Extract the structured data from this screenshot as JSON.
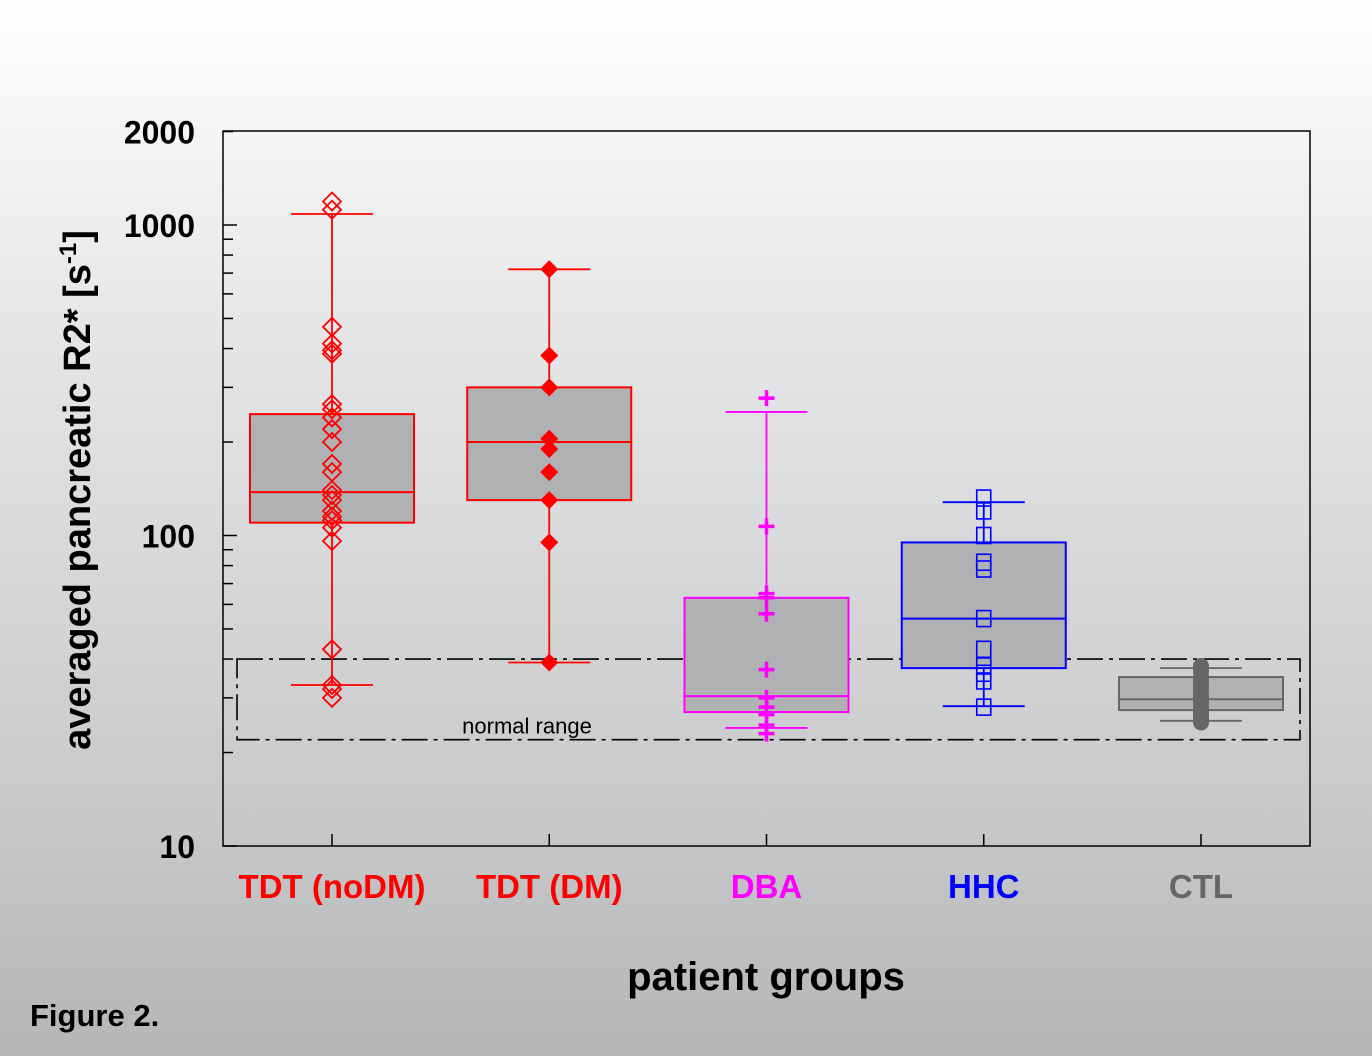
{
  "figure_label": "Figure 2.",
  "chart_data": {
    "type": "box",
    "title": "",
    "xlabel": "patient groups",
    "ylabel": "averaged pancreatic R2* [s",
    "ylabel_sup": "-1",
    "ylabel_end": "]",
    "yscale": "log",
    "ylim": [
      10,
      2000
    ],
    "yticks": [
      {
        "v": 10,
        "label": "10"
      },
      {
        "v": 100,
        "label": "100"
      },
      {
        "v": 1000,
        "label": "1000"
      },
      {
        "v": 2000,
        "label": "2000"
      }
    ],
    "normal_range": {
      "label": "normal range",
      "low": 22,
      "high": 40
    },
    "groups": [
      {
        "name": "TDT (noDM)",
        "color": "#ff0000",
        "marker": "diamond-open",
        "q1": 110,
        "median": 138,
        "q3": 246,
        "whisker_low": 33,
        "whisker_high": 1085,
        "points": [
          1190,
          1120,
          470,
          415,
          395,
          385,
          265,
          255,
          240,
          220,
          200,
          170,
          160,
          140,
          135,
          130,
          120,
          115,
          112,
          106,
          96,
          43,
          33,
          32,
          30
        ]
      },
      {
        "name": "TDT (DM)",
        "color": "#ff0000",
        "marker": "diamond-filled",
        "q1": 130,
        "median": 200,
        "q3": 300,
        "whisker_low": 39,
        "whisker_high": 720,
        "points": [
          720,
          380,
          300,
          205,
          190,
          160,
          130,
          95,
          39
        ]
      },
      {
        "name": "DBA",
        "color": "#ff00ff",
        "marker": "plus",
        "q1": 27,
        "median": 30.4,
        "q3": 63,
        "whisker_low": 24,
        "whisker_high": 250,
        "points": [
          277,
          107,
          65,
          63,
          56,
          37,
          30,
          28,
          26.5,
          24.5,
          23
        ]
      },
      {
        "name": "HHC",
        "color": "#0000ff",
        "marker": "square-open",
        "q1": 37.4,
        "median": 54,
        "q3": 95,
        "whisker_low": 28.2,
        "whisker_high": 128,
        "points": [
          132,
          120,
          100,
          82,
          78,
          54,
          43,
          38,
          36,
          34,
          28
        ]
      },
      {
        "name": "CTL",
        "color": "#666666",
        "marker": "circle-filled",
        "q1": 27.4,
        "median": 29.7,
        "q3": 35,
        "whisker_low": 25.3,
        "whisker_high": 37.4,
        "points": [
          38,
          36.5,
          35,
          34,
          33,
          32,
          31,
          30,
          29.5,
          29,
          28,
          27,
          26.5,
          26,
          25.5,
          25
        ]
      }
    ]
  }
}
